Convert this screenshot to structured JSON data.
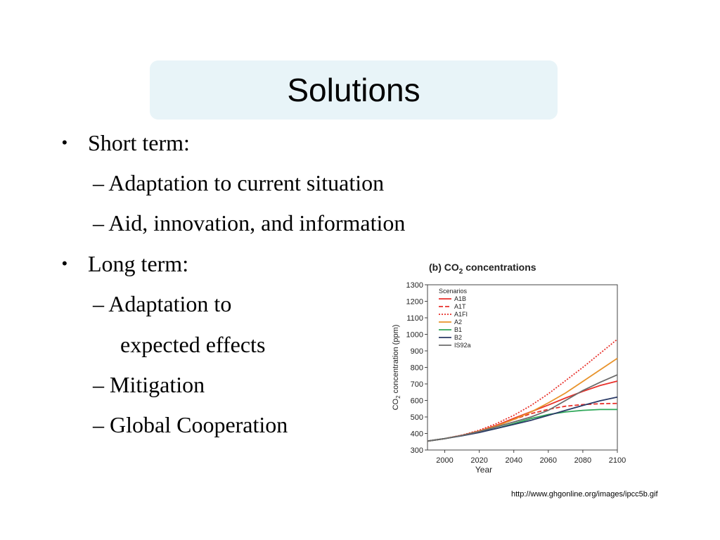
{
  "slide": {
    "title": "Solutions",
    "bullets": [
      {
        "text": "Short term:",
        "sub": [
          "Adaptation to current situation",
          "Aid, innovation, and information"
        ]
      },
      {
        "text": "Long term:",
        "sub": [
          "Adaptation to",
          "expected effects",
          "Mitigation",
          "Global Cooperation"
        ]
      }
    ],
    "bullet_glyph": "•",
    "dash_glyph": "–",
    "source": "http://www.ghgonline.org/images/ipcc5b.gif"
  },
  "chart_data": {
    "type": "line",
    "title": "(b) CO2 concentrations",
    "xlabel": "Year",
    "ylabel": "CO2 concentration (ppm)",
    "legend_title": "Scenarios",
    "legend_position": "top-left",
    "xlim": [
      1990,
      2100
    ],
    "ylim": [
      300,
      1300
    ],
    "xticks": [
      2000,
      2020,
      2040,
      2060,
      2080,
      2100
    ],
    "yticks": [
      300,
      400,
      500,
      600,
      700,
      800,
      900,
      1000,
      1100,
      1200,
      1300
    ],
    "x": [
      1990,
      2000,
      2010,
      2020,
      2030,
      2040,
      2050,
      2060,
      2070,
      2080,
      2090,
      2100
    ],
    "series": [
      {
        "name": "A1B",
        "color": "#e8312b",
        "dash": "solid",
        "values": [
          354,
          369,
          389,
          415,
          450,
          492,
          532,
          572,
          615,
          655,
          690,
          717
        ]
      },
      {
        "name": "A1T",
        "color": "#e8312b",
        "dash": "dashed",
        "values": [
          354,
          369,
          389,
          414,
          445,
          485,
          520,
          546,
          565,
          575,
          580,
          582
        ]
      },
      {
        "name": "A1FI",
        "color": "#e8312b",
        "dash": "dotted",
        "values": [
          354,
          369,
          390,
          420,
          460,
          510,
          570,
          640,
          720,
          800,
          885,
          970
        ]
      },
      {
        "name": "A2",
        "color": "#e8932b",
        "dash": "solid",
        "values": [
          354,
          369,
          388,
          414,
          445,
          485,
          530,
          585,
          645,
          715,
          785,
          855
        ]
      },
      {
        "name": "B1",
        "color": "#2fa85a",
        "dash": "solid",
        "values": [
          354,
          369,
          387,
          408,
          430,
          460,
          490,
          515,
          530,
          540,
          545,
          545
        ]
      },
      {
        "name": "B2",
        "color": "#2a3a66",
        "dash": "solid",
        "values": [
          354,
          369,
          386,
          406,
          430,
          455,
          480,
          510,
          540,
          570,
          598,
          620
        ]
      },
      {
        "name": "IS92a",
        "color": "#6b6b6b",
        "dash": "solid",
        "values": [
          354,
          369,
          388,
          412,
          440,
          470,
          500,
          540,
          600,
          660,
          710,
          755
        ]
      }
    ]
  }
}
